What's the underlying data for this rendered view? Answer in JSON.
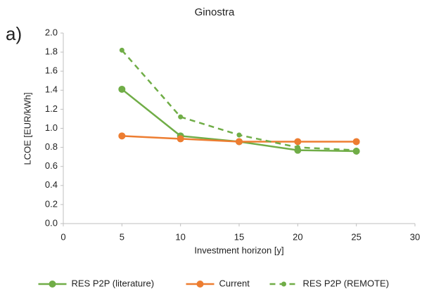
{
  "chart_data": {
    "type": "line",
    "title": "Ginostra",
    "panel_label": "a)",
    "x_label": "Investment horizon [y]",
    "y_label": "LCOE [EUR/kWh]",
    "x": [
      5,
      10,
      15,
      20,
      25
    ],
    "series": [
      {
        "name": "RES P2P (literature)",
        "color": "#70ad47",
        "dashed": false,
        "values": [
          1.41,
          0.92,
          0.86,
          0.77,
          0.76
        ]
      },
      {
        "name": "Current",
        "color": "#ed7d31",
        "dashed": false,
        "values": [
          0.92,
          0.89,
          0.86,
          0.86,
          0.86
        ]
      },
      {
        "name": "RES P2P (REMOTE)",
        "color": "#70ad47",
        "dashed": true,
        "values": [
          1.82,
          1.12,
          0.93,
          0.8,
          0.77
        ]
      }
    ],
    "xlim": [
      0,
      30
    ],
    "xticks": [
      0,
      5,
      10,
      15,
      20,
      25,
      30
    ],
    "ylim": [
      0,
      2
    ],
    "yticks": [
      {
        "value": 0,
        "label": "0.0"
      },
      0.2,
      0.4,
      0.6,
      0.8,
      {
        "value": 1,
        "label": "1.0"
      },
      1.2,
      1.4,
      1.6,
      1.8,
      {
        "value": 2,
        "label": "2.0"
      }
    ],
    "grid": false,
    "legend": "bottom"
  }
}
